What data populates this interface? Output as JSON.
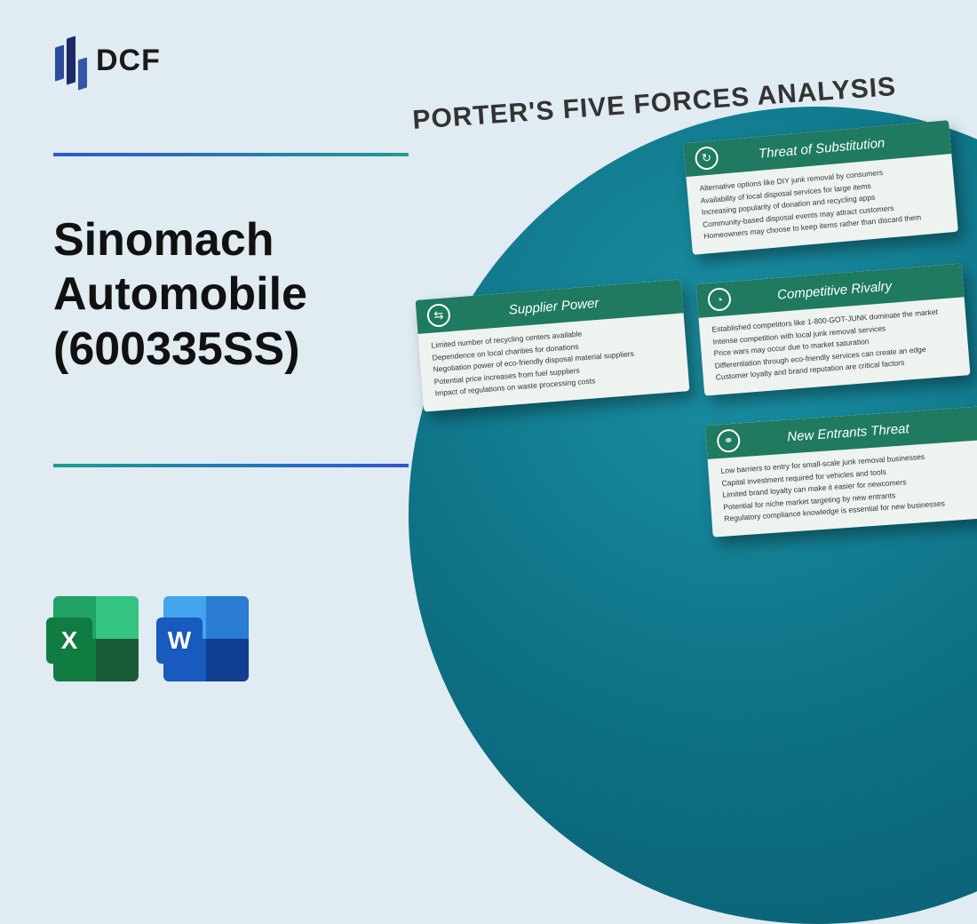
{
  "logo": {
    "text": "DCF"
  },
  "title_line1": "Sinomach",
  "title_line2": "Automobile",
  "title_line3": "(600335SS)",
  "analysis_title": "PORTER'S FIVE FORCES ANALYSIS",
  "icons": {
    "excel": "X",
    "word": "W"
  },
  "colors": {
    "background": "#e0ebf2",
    "rule_gradient_start": "#2f55d4",
    "rule_gradient_end": "#1d9e90",
    "card_header": "#1f7a5f",
    "circle": "#0d6e82"
  },
  "cards": {
    "substitution": {
      "title": "Threat of Substitution",
      "icon": "↻",
      "items": [
        "Alternative options like DIY junk removal by consumers",
        "Availability of local disposal services for large items",
        "Increasing popularity of donation and recycling apps",
        "Community-based disposal events may attract customers",
        "Homeowners may choose to keep items rather than discard them"
      ]
    },
    "rivalry": {
      "title": "Competitive Rivalry",
      "icon": "◔",
      "items": [
        "Established competitors like 1-800-GOT-JUNK dominate the market",
        "Intense competition with local junk removal services",
        "Price wars may occur due to market saturation",
        "Differentiation through eco-friendly services can create an edge",
        "Customer loyalty and brand reputation are critical factors"
      ]
    },
    "entrants": {
      "title": "New Entrants Threat",
      "icon": "⚭",
      "items": [
        "Low barriers to entry for small-scale junk removal businesses",
        "Capital investment required for vehicles and tools",
        "Limited brand loyalty can make it easier for newcomers",
        "Potential for niche market targeting by new entrants",
        "Regulatory compliance knowledge is essential for new businesses"
      ]
    },
    "supplier": {
      "title": "Supplier Power",
      "icon": "⇆",
      "items": [
        "Limited number of recycling centers available",
        "Dependence on local charities for donations",
        "Negotiation power of eco-friendly disposal material suppliers",
        "Potential price increases from fuel suppliers",
        "Impact of regulations on waste processing costs"
      ]
    }
  }
}
